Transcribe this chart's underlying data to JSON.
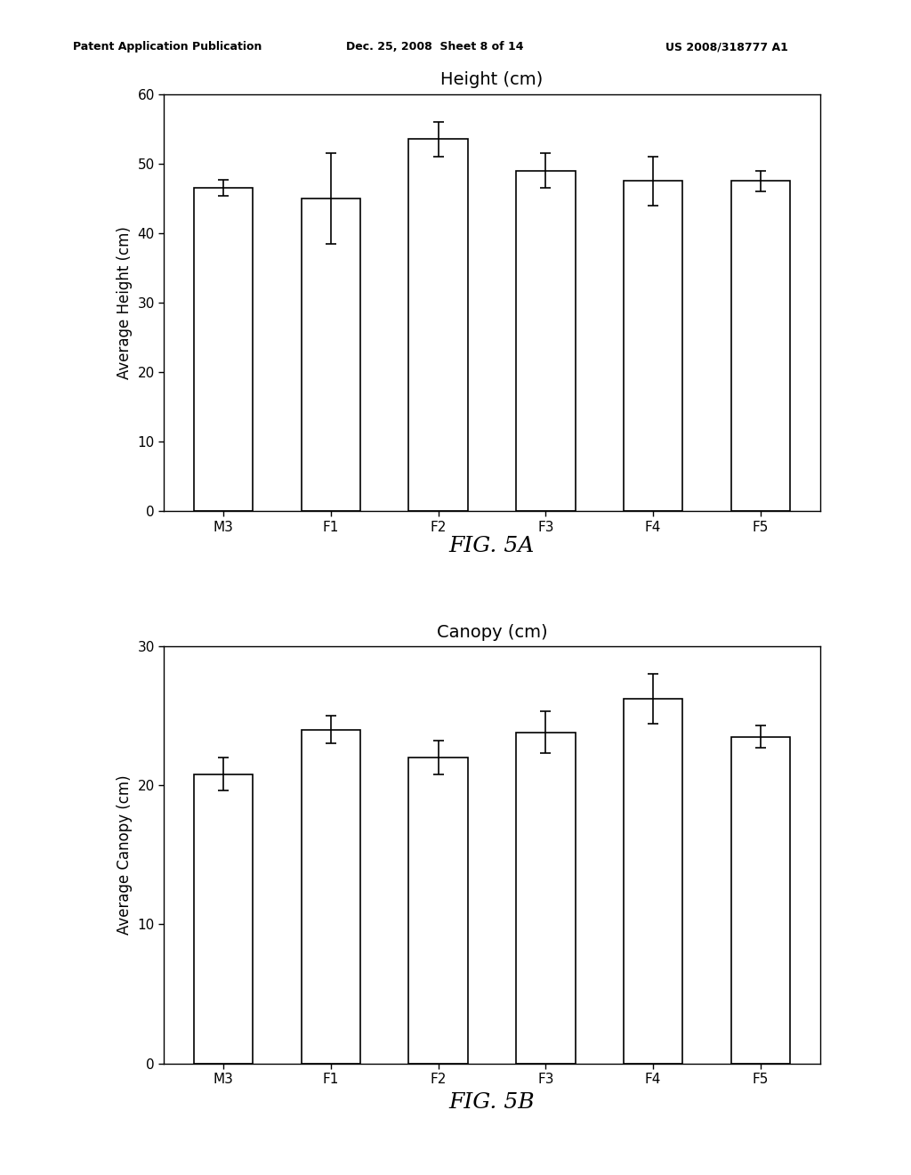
{
  "fig5a": {
    "title": "Height (cm)",
    "ylabel": "Average Height (cm)",
    "categories": [
      "M3",
      "F1",
      "F2",
      "F3",
      "F4",
      "F5"
    ],
    "values": [
      46.5,
      45.0,
      53.5,
      49.0,
      47.5,
      47.5
    ],
    "errors": [
      1.2,
      6.5,
      2.5,
      2.5,
      3.5,
      1.5
    ],
    "ylim": [
      0,
      60
    ],
    "yticks": [
      0,
      10,
      20,
      30,
      40,
      50,
      60
    ],
    "fig_label": "FIG. 5A"
  },
  "fig5b": {
    "title": "Canopy (cm)",
    "ylabel": "Average Canopy (cm)",
    "categories": [
      "M3",
      "F1",
      "F2",
      "F3",
      "F4",
      "F5"
    ],
    "values": [
      20.8,
      24.0,
      22.0,
      23.8,
      26.2,
      23.5
    ],
    "errors": [
      1.2,
      1.0,
      1.2,
      1.5,
      1.8,
      0.8
    ],
    "ylim": [
      0,
      30
    ],
    "yticks": [
      0,
      10,
      20,
      30
    ],
    "fig_label": "FIG. 5B"
  },
  "header_left": "Patent Application Publication",
  "header_mid": "Dec. 25, 2008  Sheet 8 of 14",
  "header_right": "US 2008/318777 A1",
  "bar_color": "#ffffff",
  "bar_edgecolor": "#000000",
  "background_color": "#ffffff",
  "bar_width": 0.55,
  "capsize": 4,
  "title_fontsize": 14,
  "label_fontsize": 12,
  "tick_fontsize": 11,
  "fig_label_fontsize": 18
}
